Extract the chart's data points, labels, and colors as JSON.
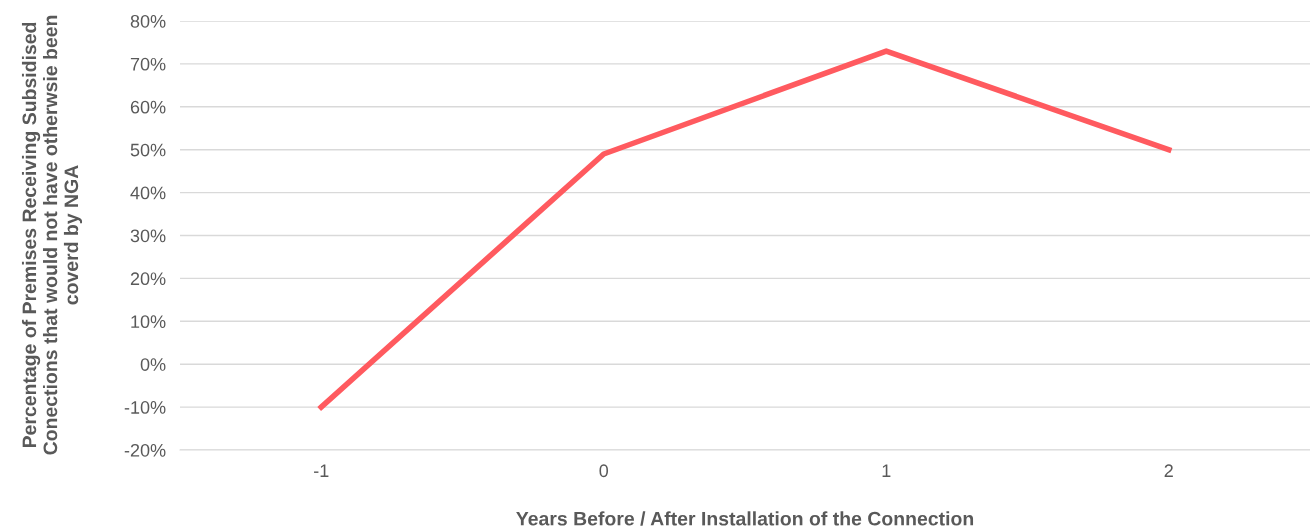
{
  "chart_data": {
    "type": "line",
    "xlabel": "Years Before / After Installation of the Connection",
    "ylabel": "Percentage of Premises Receiving Subsidised Conections that would not have otherwsie been coverd by NGA",
    "categories": [
      "-1",
      "0",
      "1",
      "2"
    ],
    "series": [
      {
        "color": "#ff5a5f",
        "values": [
          -10,
          49,
          73,
          50
        ]
      }
    ],
    "ylim": [
      -20,
      80
    ],
    "yticks": [
      {
        "value": -20,
        "label": "-20%"
      },
      {
        "value": -10,
        "label": "-10%"
      },
      {
        "value": 0,
        "label": "0%"
      },
      {
        "value": 10,
        "label": "10%"
      },
      {
        "value": 20,
        "label": "20%"
      },
      {
        "value": 30,
        "label": "30%"
      },
      {
        "value": 40,
        "label": "40%"
      },
      {
        "value": 50,
        "label": "50%"
      },
      {
        "value": 60,
        "label": "60%"
      },
      {
        "value": 70,
        "label": "70%"
      },
      {
        "value": 80,
        "label": "80%"
      }
    ],
    "grid": "y",
    "marker": "none",
    "line_style": "solid"
  }
}
